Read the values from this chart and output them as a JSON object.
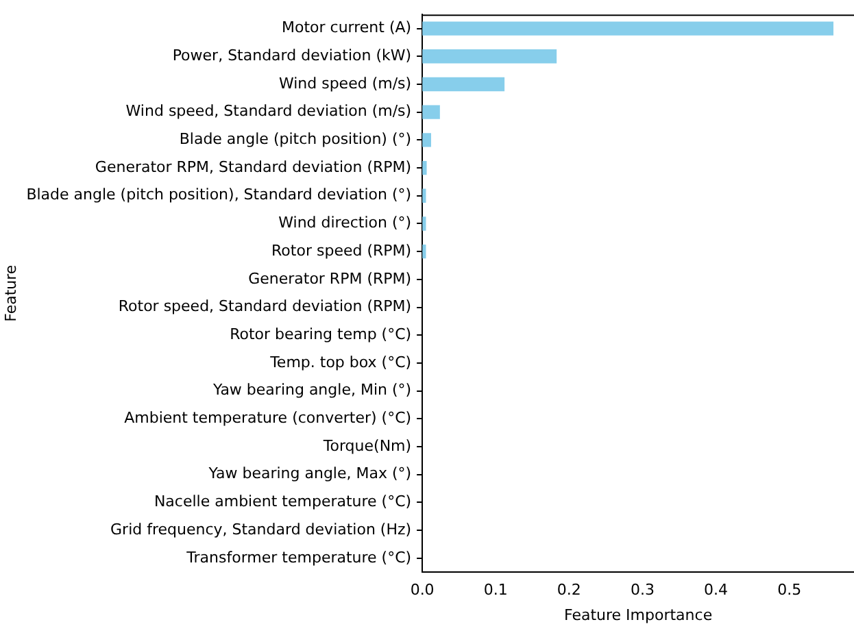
{
  "chart_data": {
    "type": "bar",
    "orientation": "horizontal",
    "xlabel": "Feature Importance",
    "ylabel": "Feature",
    "categories": [
      "Motor current (A)",
      "Power, Standard deviation (kW)",
      "Wind speed (m/s)",
      "Wind speed, Standard deviation (m/s)",
      "Blade angle (pitch position) (°)",
      "Generator RPM, Standard deviation (RPM)",
      "Blade angle (pitch position), Standard deviation (°)",
      "Wind direction (°)",
      "Rotor speed (RPM)",
      "Generator RPM (RPM)",
      "Rotor speed, Standard deviation (RPM)",
      "Rotor bearing temp (°C)",
      "Temp. top box (°C)",
      "Yaw bearing angle, Min (°)",
      "Ambient temperature (converter) (°C)",
      "Torque(Nm)",
      "Yaw bearing angle, Max (°)",
      "Nacelle ambient temperature (°C)",
      "Grid frequency, Standard deviation (Hz)",
      "Transformer temperature (°C)"
    ],
    "values": [
      0.56,
      0.183,
      0.112,
      0.024,
      0.012,
      0.006,
      0.005,
      0.005,
      0.005,
      0,
      0,
      0,
      0,
      0,
      0,
      0,
      0,
      0,
      0,
      0
    ],
    "color": "#87ceeb",
    "xlim": [
      0,
      0.588
    ],
    "xticks": [
      {
        "value": 0,
        "label": "0.0"
      },
      0.1,
      0.2,
      0.3,
      0.4,
      0.5
    ],
    "grid": false,
    "legend": false
  }
}
